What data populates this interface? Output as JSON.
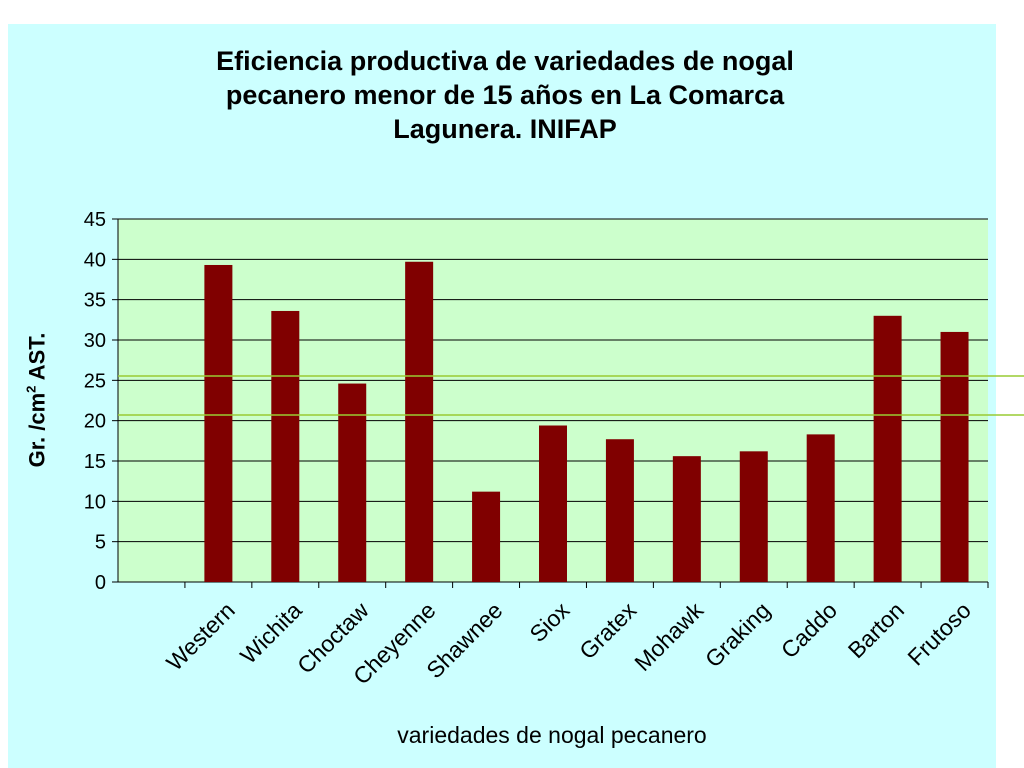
{
  "chart_data": {
    "type": "bar",
    "title_lines": [
      "Eficiencia  productiva de variedades de nogal",
      "pecanero menor de 15 años en La Comarca",
      "Lagunera. INIFAP"
    ],
    "ylabel": {
      "text": "Gr. /cm",
      "sup": "2",
      "suffix": " AST."
    },
    "xlabel": "variedades de nogal pecanero",
    "categories": [
      "",
      "Western",
      "Wichita",
      "Choctaw",
      "Cheyenne",
      "Shawnee",
      "Siox",
      "Gratex",
      "Mohawk",
      "Graking",
      "Caddo",
      "Barton",
      "Frutoso"
    ],
    "values": [
      null,
      39.3,
      33.6,
      24.6,
      39.7,
      11.2,
      19.4,
      17.7,
      15.6,
      16.2,
      18.3,
      33.0,
      31.0
    ],
    "ylim": [
      0,
      45
    ],
    "yticks": [
      "0",
      "5",
      "10",
      "15",
      "20",
      "25",
      "30",
      "35",
      "40",
      "45"
    ],
    "grid": true,
    "colors": {
      "panel": "#ccffff",
      "plot_area": "#ccffcc",
      "bar": "#800000",
      "gridline": "#000000",
      "accent_line": "#99cc33"
    }
  }
}
